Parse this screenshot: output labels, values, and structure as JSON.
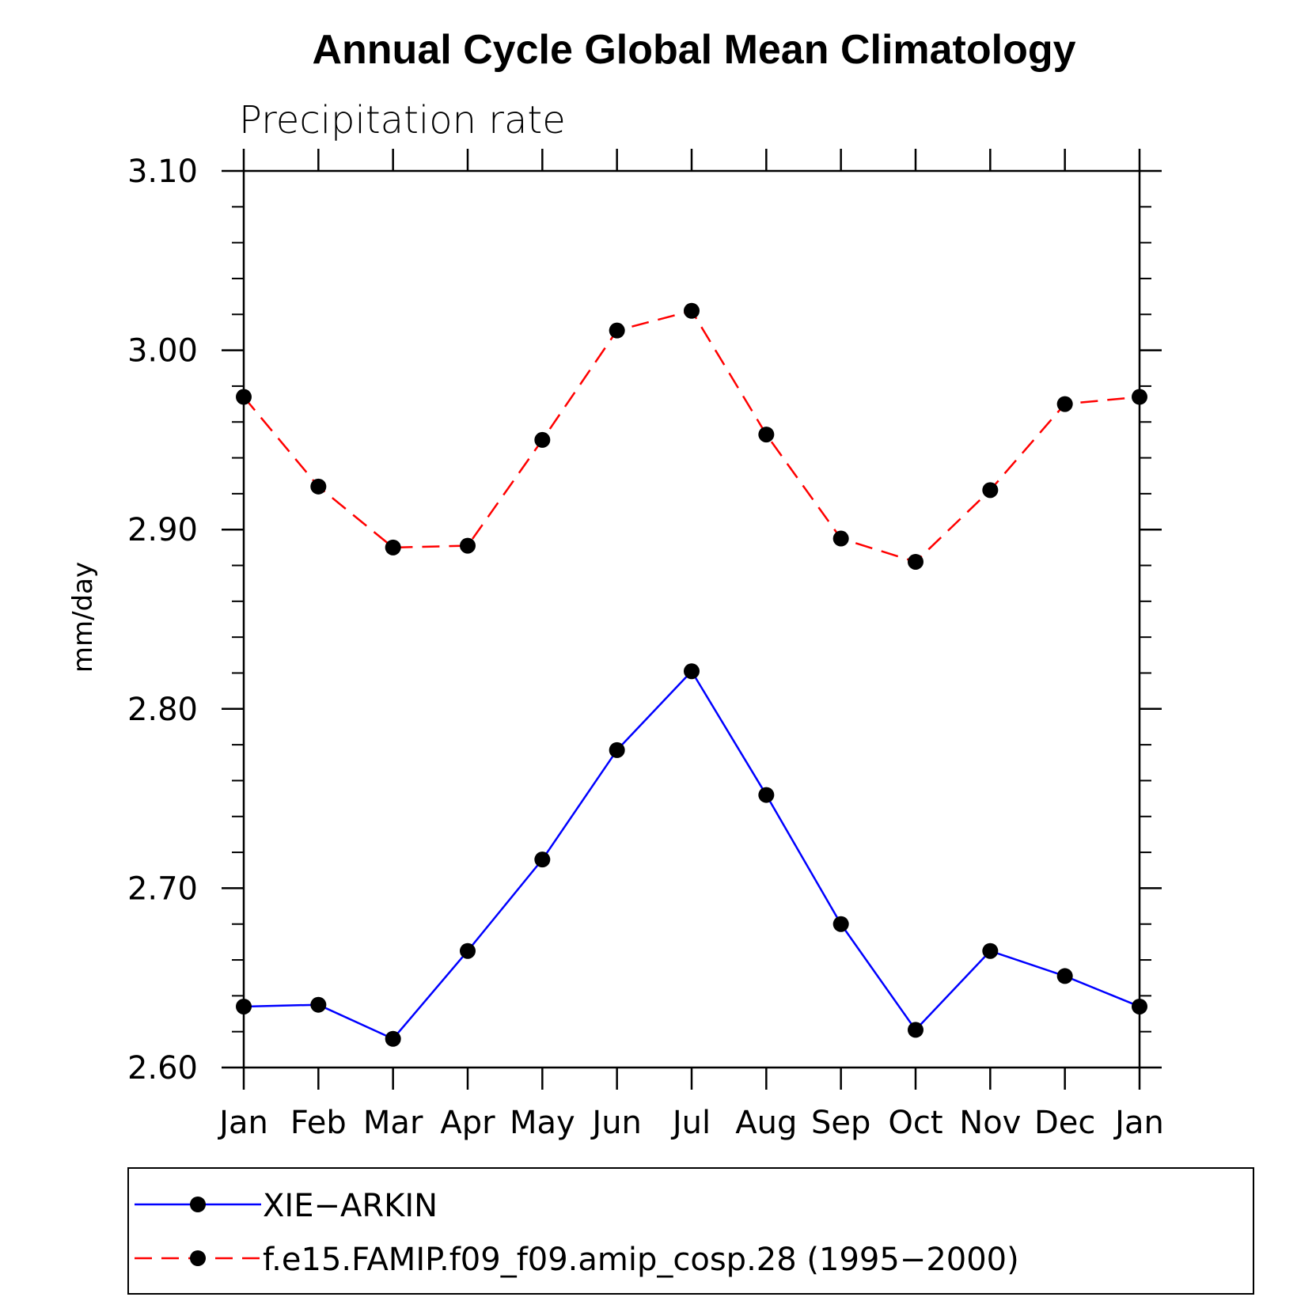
{
  "chart_data": {
    "type": "line",
    "title": "Annual Cycle Global Mean Climatology",
    "subtitle": "Precipitation rate",
    "ylabel": "mm/day",
    "xlabel": "",
    "categories": [
      "Jan",
      "Feb",
      "Mar",
      "Apr",
      "May",
      "Jun",
      "Jul",
      "Aug",
      "Sep",
      "Oct",
      "Nov",
      "Dec",
      "Jan"
    ],
    "ylim": [
      2.6,
      3.1
    ],
    "yticks": [
      "2.60",
      "2.70",
      "2.80",
      "2.90",
      "3.00",
      "3.10"
    ],
    "series": [
      {
        "name": "XIE−ARKIN",
        "color": "#0000ff",
        "dash": "solid",
        "marker": "filled-circle",
        "values": [
          2.634,
          2.635,
          2.616,
          2.665,
          2.716,
          2.777,
          2.821,
          2.752,
          2.68,
          2.621,
          2.665,
          2.651,
          2.634
        ]
      },
      {
        "name": "f.e15.FAMIP.f09_f09.amip_cosp.28 (1995−2000)",
        "color": "#ff0000",
        "dash": "dashed",
        "marker": "filled-circle",
        "values": [
          2.974,
          2.924,
          2.89,
          2.891,
          2.95,
          3.011,
          3.022,
          2.953,
          2.895,
          2.882,
          2.922,
          2.97,
          2.974
        ]
      }
    ],
    "grid": false,
    "legend_position": "bottom"
  }
}
